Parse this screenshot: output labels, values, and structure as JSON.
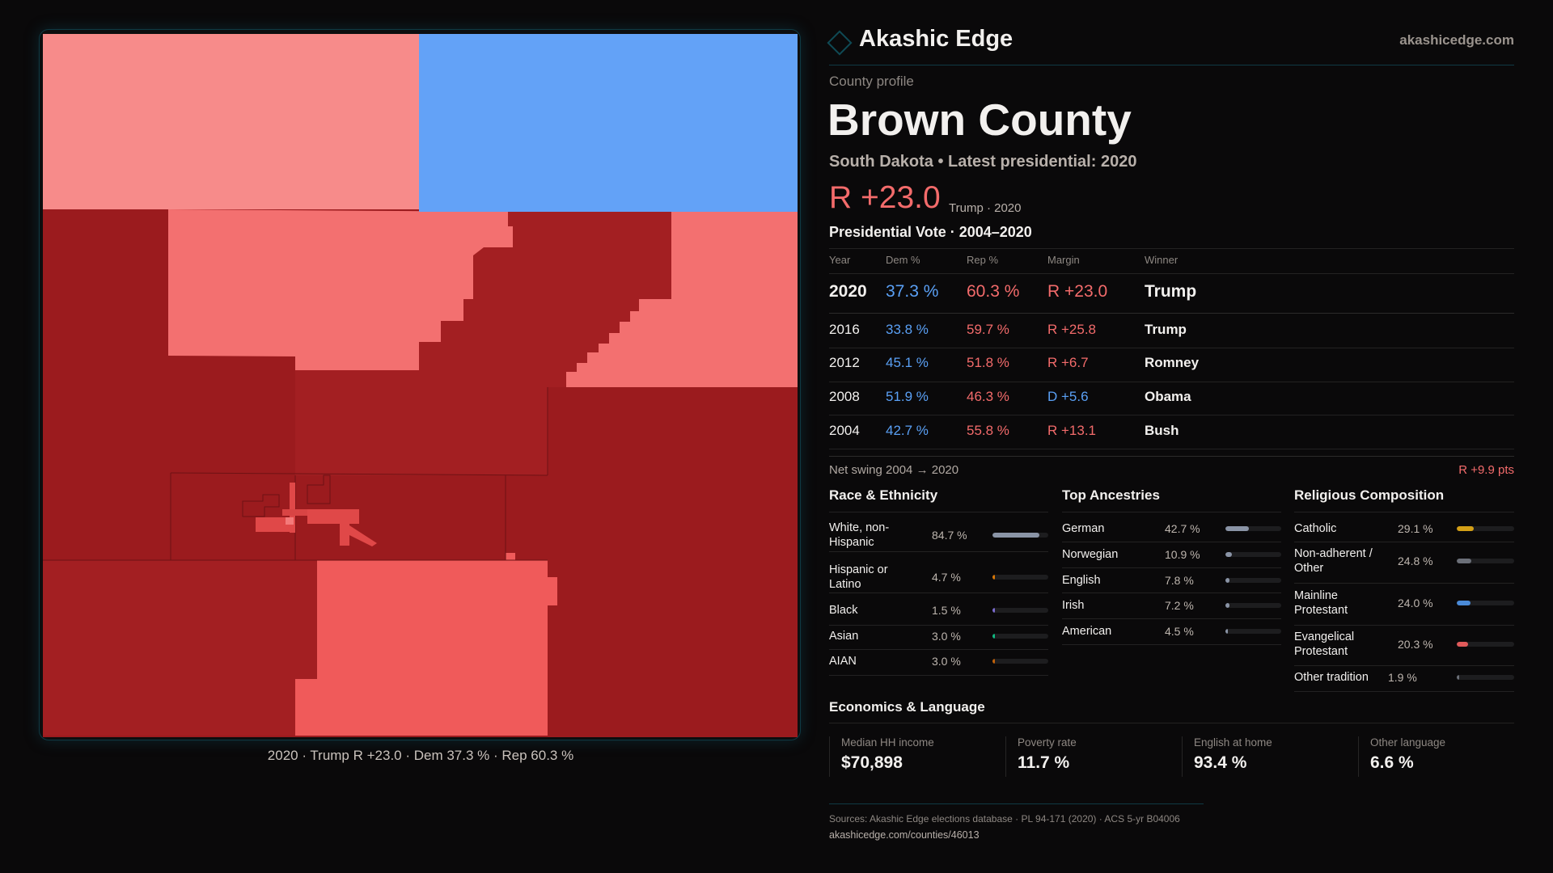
{
  "brand": {
    "name": "Akashic Edge",
    "site": "akashicedge.com"
  },
  "profile": {
    "eyebrow": "County profile",
    "title": "Brown County",
    "subtitle": "South Dakota • Latest presidential: 2020",
    "margin": "R +23.0",
    "margin_note": "Trump · 2020"
  },
  "map": {
    "caption": "2020 · Trump R +23.0 · Dem 37.3 % · Rep 60.3 %",
    "colors": {
      "safe_r": "#9b1b1e",
      "lean_r": "#a31f22",
      "mid_r": "#f37070",
      "light_r": "#f78b8a",
      "coral": "#f05a5a",
      "dem": "#63a2f7"
    }
  },
  "votes": {
    "title": "Presidential Vote · 2004–2020",
    "headers": {
      "year": "Year",
      "dem": "Dem %",
      "rep": "Rep %",
      "margin": "Margin",
      "winner": "Winner"
    },
    "rows": [
      {
        "year": "2020",
        "dem": "37.3 %",
        "rep": "60.3 %",
        "margin": "R +23.0",
        "winner": "Trump",
        "party": "R"
      },
      {
        "year": "2016",
        "dem": "33.8 %",
        "rep": "59.7 %",
        "margin": "R +25.8",
        "winner": "Trump",
        "party": "R"
      },
      {
        "year": "2012",
        "dem": "45.1 %",
        "rep": "51.8 %",
        "margin": "R +6.7",
        "winner": "Romney",
        "party": "R"
      },
      {
        "year": "2008",
        "dem": "51.9 %",
        "rep": "46.3 %",
        "margin": "D +5.6",
        "winner": "Obama",
        "party": "D"
      },
      {
        "year": "2004",
        "dem": "42.7 %",
        "rep": "55.8 %",
        "margin": "R +13.1",
        "winner": "Bush",
        "party": "R"
      }
    ],
    "swing_label": "Net swing 2004 → 2020",
    "swing_value": "R +9.9 pts"
  },
  "race": {
    "title": "Race & Ethnicity",
    "items": [
      {
        "label": "White, non-Hispanic",
        "value": "84.7 %",
        "pct": 84.7,
        "color": "#8a94a6"
      },
      {
        "label": "Hispanic or Latino",
        "value": "4.7 %",
        "pct": 4.7,
        "color": "#d97706"
      },
      {
        "label": "Black",
        "value": "1.5 %",
        "pct": 1.5,
        "color": "#7c6cd0"
      },
      {
        "label": "Asian",
        "value": "3.0 %",
        "pct": 3.0,
        "color": "#10b981"
      },
      {
        "label": "AIAN",
        "value": "3.0 %",
        "pct": 3.0,
        "color": "#c2620a"
      }
    ]
  },
  "ancestry": {
    "title": "Top Ancestries",
    "items": [
      {
        "label": "German",
        "value": "42.7 %",
        "pct": 42.7,
        "color": "#8a94a6"
      },
      {
        "label": "Norwegian",
        "value": "10.9 %",
        "pct": 10.9,
        "color": "#8a94a6"
      },
      {
        "label": "English",
        "value": "7.8 %",
        "pct": 7.8,
        "color": "#8a94a6"
      },
      {
        "label": "Irish",
        "value": "7.2 %",
        "pct": 7.2,
        "color": "#8a94a6"
      },
      {
        "label": "American",
        "value": "4.5 %",
        "pct": 4.5,
        "color": "#8a94a6"
      }
    ]
  },
  "religion": {
    "title": "Religious Composition",
    "items": [
      {
        "label": "Catholic",
        "value": "29.1 %",
        "pct": 29.1,
        "color": "#d4a017"
      },
      {
        "label": "Non-adherent / Other",
        "value": "24.8 %",
        "pct": 24.8,
        "color": "#6b6f78"
      },
      {
        "label": "Mainline Protestant",
        "value": "24.0 %",
        "pct": 24.0,
        "color": "#4a8ad8"
      },
      {
        "label": "Evangelical Protestant",
        "value": "20.3 %",
        "pct": 20.3,
        "color": "#e05a5a"
      },
      {
        "label": "Other tradition",
        "value": "1.9 %",
        "pct": 1.9,
        "color": "#6b6f78"
      }
    ]
  },
  "economics": {
    "title": "Economics & Language",
    "stats": [
      {
        "label": "Median HH income",
        "value": "$70,898"
      },
      {
        "label": "Poverty rate",
        "value": "11.7 %"
      },
      {
        "label": "English at home",
        "value": "93.4 %"
      },
      {
        "label": "Other language",
        "value": "6.6 %"
      }
    ]
  },
  "footer": {
    "sources": "Sources: Akashic Edge elections database · PL 94-171 (2020) · ACS 5-yr B04006",
    "url": "akashicedge.com/counties/46013"
  }
}
